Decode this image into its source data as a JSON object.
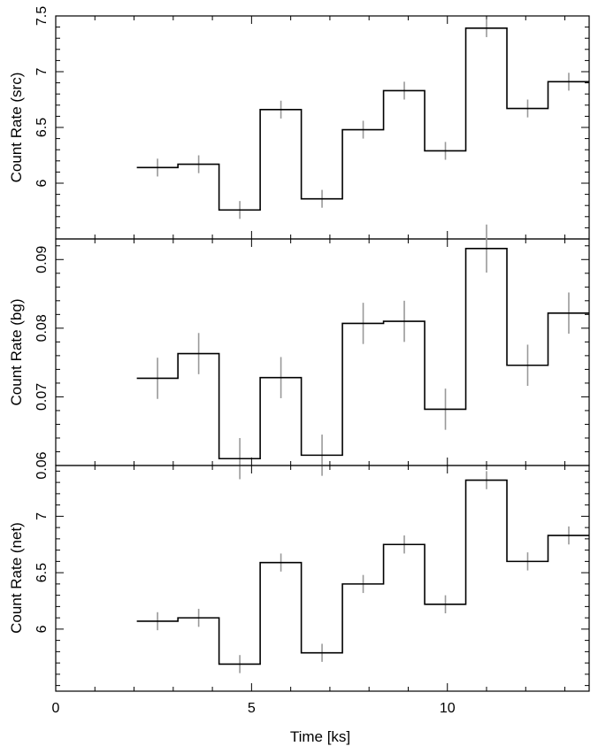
{
  "chart_data": [
    {
      "type": "line",
      "panel": "src",
      "ylabel": "Count Rate (src)",
      "ylim": [
        5.5,
        7.5
      ],
      "yticks": [
        6,
        6.5,
        7,
        7.5
      ],
      "tick_labels": [
        "6",
        "6.5",
        "7",
        "7.5"
      ],
      "bin_edges": [
        2.07,
        3.12,
        4.17,
        5.22,
        6.27,
        7.32,
        8.37,
        9.42,
        10.47,
        11.52,
        12.57,
        13.62
      ],
      "x": [
        2.6,
        3.65,
        4.7,
        5.75,
        6.8,
        7.85,
        8.9,
        9.95,
        11.0,
        12.05,
        13.1
      ],
      "values": [
        6.14,
        6.17,
        5.76,
        6.66,
        5.86,
        6.48,
        6.83,
        6.29,
        7.39,
        6.67,
        6.91
      ],
      "errors": [
        0.08,
        0.08,
        0.08,
        0.08,
        0.08,
        0.08,
        0.08,
        0.08,
        0.08,
        0.08,
        0.08
      ]
    },
    {
      "type": "line",
      "panel": "bg",
      "ylabel": "Count Rate (bg)",
      "ylim": [
        0.06,
        0.093
      ],
      "yticks": [
        0.06,
        0.07,
        0.08,
        0.09
      ],
      "tick_labels": [
        "0.06",
        "0.07",
        "0.08",
        "0.09"
      ],
      "bin_edges": [
        2.07,
        3.12,
        4.17,
        5.22,
        6.27,
        7.32,
        8.37,
        9.42,
        10.47,
        11.52,
        12.57,
        13.62
      ],
      "x": [
        2.6,
        3.65,
        4.7,
        5.75,
        6.8,
        7.85,
        8.9,
        9.95,
        11.0,
        12.05,
        13.1
      ],
      "values": [
        0.0727,
        0.0763,
        0.061,
        0.0728,
        0.0615,
        0.0807,
        0.081,
        0.0682,
        0.0916,
        0.0746,
        0.0822
      ],
      "errors": [
        0.003,
        0.003,
        0.003,
        0.003,
        0.003,
        0.003,
        0.003,
        0.003,
        0.0035,
        0.003,
        0.003
      ]
    },
    {
      "type": "line",
      "panel": "net",
      "ylabel": "Count Rate (net)",
      "xlabel": "Time [ks]",
      "xlim": [
        0,
        13.62
      ],
      "xticks": [
        0,
        5,
        10
      ],
      "x_tick_labels": [
        "0",
        "5",
        "10"
      ],
      "ylim": [
        5.45,
        7.45
      ],
      "yticks": [
        6,
        6.5,
        7
      ],
      "tick_labels": [
        "6",
        "6.5",
        "7"
      ],
      "bin_edges": [
        2.07,
        3.12,
        4.17,
        5.22,
        6.27,
        7.32,
        8.37,
        9.42,
        10.47,
        11.52,
        12.57,
        13.62
      ],
      "x": [
        2.6,
        3.65,
        4.7,
        5.75,
        6.8,
        7.85,
        8.9,
        9.95,
        11.0,
        12.05,
        13.1
      ],
      "values": [
        6.07,
        6.1,
        5.69,
        6.59,
        5.79,
        6.4,
        6.75,
        6.22,
        7.32,
        6.6,
        6.83
      ],
      "errors": [
        0.08,
        0.08,
        0.08,
        0.08,
        0.08,
        0.08,
        0.08,
        0.08,
        0.08,
        0.08,
        0.08
      ]
    }
  ],
  "colors": {
    "step_line": "#000000",
    "error_bars": "#999999",
    "axes": "#000000"
  }
}
